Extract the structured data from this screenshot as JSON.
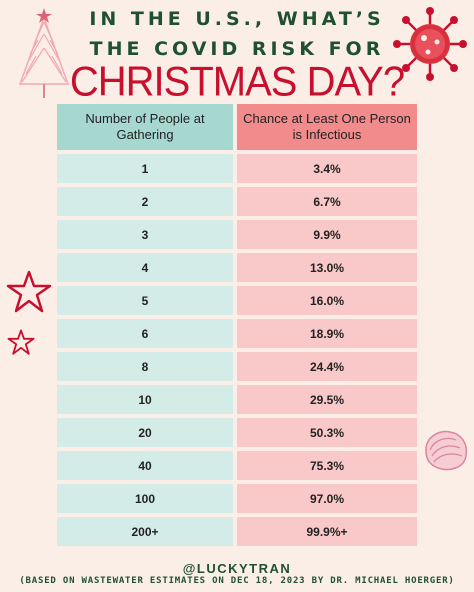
{
  "title": {
    "line1": "IN THE U.S., WHAT’S",
    "line2": "THE COVID RISK FOR",
    "line3": "CHRISTMAS DAY?"
  },
  "table": {
    "headers": [
      "Number of People at Gathering",
      "Chance at Least One Person is Infectious"
    ],
    "rows": [
      [
        "1",
        "3.4%"
      ],
      [
        "2",
        "6.7%"
      ],
      [
        "3",
        "9.9%"
      ],
      [
        "4",
        "13.0%"
      ],
      [
        "5",
        "16.0%"
      ],
      [
        "6",
        "18.9%"
      ],
      [
        "8",
        "24.4%"
      ],
      [
        "10",
        "29.5%"
      ],
      [
        "20",
        "50.3%"
      ],
      [
        "40",
        "75.3%"
      ],
      [
        "100",
        "97.0%"
      ],
      [
        "200+",
        "99.9%+"
      ]
    ]
  },
  "footer": {
    "handle": "@LUCKYTRAN",
    "source": "(BASED ON WASTEWATER ESTIMATES ON DEC 18, 2023 BY DR. MICHAEL HOERGER)"
  },
  "colors": {
    "title_green": "#1f5130",
    "title_red": "#c8102e",
    "header_teal": "#a7d8cf",
    "header_red": "#f28b8b",
    "cell_teal": "#d4ece7",
    "cell_pink": "#f9c8c8"
  },
  "icons": [
    "christmas-tree-icon",
    "virus-icon",
    "starfish-icon",
    "seashell-icon"
  ]
}
